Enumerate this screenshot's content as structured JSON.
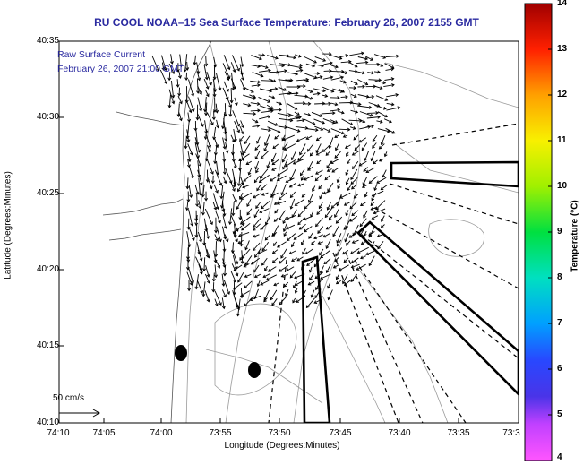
{
  "title": "RU COOL  NOAA–15  Sea Surface Temperature:  February 26, 2007 2155 GMT",
  "overlay": {
    "line1": "Raw Surface Current",
    "line2": "February 26, 2007 21:00 GMT"
  },
  "axes": {
    "ylabel": "Latitude (Degrees:Minutes)",
    "xlabel": "Longitude (Degrees:Minutes)",
    "lat_ticks": [
      "40:35",
      "40:30",
      "40:25",
      "40:20",
      "40:15",
      "40:10"
    ],
    "lon_ticks": [
      "74:10",
      "74:05",
      "74:00",
      "73:55",
      "73:50",
      "73:45",
      "73:40",
      "73:35",
      "73:3"
    ]
  },
  "colorbar": {
    "title": "Temperature (°C)",
    "ticks": [
      "14",
      "13",
      "12",
      "11",
      "10",
      "9",
      "8",
      "7",
      "6",
      "5",
      "4"
    ],
    "range": [
      4,
      14
    ]
  },
  "scale": {
    "label": "50 cm/s"
  }
}
